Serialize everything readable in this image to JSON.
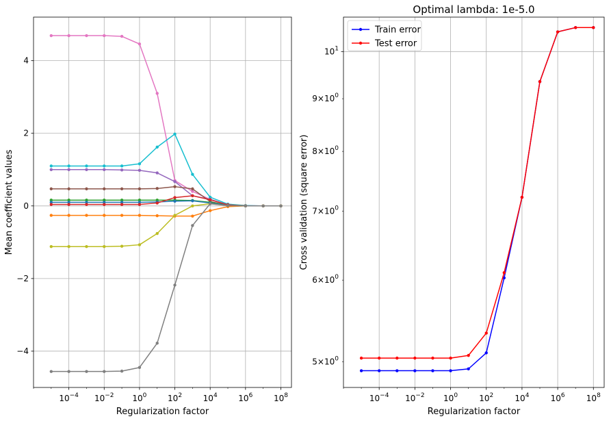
{
  "chart_data": [
    {
      "type": "line",
      "title": "",
      "xlabel": "Regularization factor",
      "ylabel": "Mean coefficient values",
      "xscale": "log",
      "yscale": "linear",
      "xlim": [
        1e-06,
        400000000.0
      ],
      "ylim": [
        -5.0,
        5.2
      ],
      "grid": true,
      "x": [
        1e-05,
        0.0001,
        0.001,
        0.01,
        0.1,
        1.0,
        10.0,
        100.0,
        1000.0,
        10000.0,
        100000.0,
        1000000.0,
        10000000.0,
        100000000.0
      ],
      "xticks": [
        {
          "value": 0.0001,
          "base": "10",
          "exp": "−4"
        },
        {
          "value": 0.01,
          "base": "10",
          "exp": "−2"
        },
        {
          "value": 1.0,
          "base": "10",
          "exp": "0"
        },
        {
          "value": 100.0,
          "base": "10",
          "exp": "2"
        },
        {
          "value": 10000.0,
          "base": "10",
          "exp": "4"
        },
        {
          "value": 1000000.0,
          "base": "10",
          "exp": "6"
        },
        {
          "value": 100000000.0,
          "base": "10",
          "exp": "8"
        }
      ],
      "yticks": [
        {
          "value": -4,
          "label": "−4"
        },
        {
          "value": -2,
          "label": "−2"
        },
        {
          "value": 0,
          "label": "0"
        },
        {
          "value": 2,
          "label": "2"
        },
        {
          "value": 4,
          "label": "4"
        }
      ],
      "series": [
        {
          "color": "#e377c2",
          "values": [
            4.69,
            4.69,
            4.69,
            4.69,
            4.67,
            4.46,
            3.1,
            0.7,
            0.4,
            0.18,
            0.03,
            0.01,
            0.0,
            0.0
          ]
        },
        {
          "color": "#17becf",
          "values": [
            1.1,
            1.1,
            1.1,
            1.1,
            1.1,
            1.16,
            1.62,
            1.98,
            0.87,
            0.24,
            0.05,
            0.01,
            0.0,
            0.0
          ]
        },
        {
          "color": "#9467bd",
          "values": [
            1.0,
            1.0,
            1.0,
            1.0,
            0.99,
            0.98,
            0.91,
            0.67,
            0.28,
            0.18,
            0.03,
            0.0,
            0.0,
            0.0
          ]
        },
        {
          "color": "#8c564b",
          "values": [
            0.47,
            0.47,
            0.47,
            0.47,
            0.47,
            0.47,
            0.48,
            0.53,
            0.47,
            0.12,
            0.02,
            0.0,
            0.0,
            0.0
          ]
        },
        {
          "color": "#2ca02c",
          "values": [
            0.16,
            0.16,
            0.16,
            0.16,
            0.16,
            0.16,
            0.16,
            0.16,
            0.15,
            0.1,
            0.02,
            0.0,
            0.0,
            0.0
          ]
        },
        {
          "color": "#1f77b4",
          "values": [
            0.1,
            0.1,
            0.1,
            0.1,
            0.1,
            0.1,
            0.11,
            0.13,
            0.14,
            0.08,
            0.02,
            0.0,
            0.0,
            0.0
          ]
        },
        {
          "color": "#d62728",
          "values": [
            0.04,
            0.04,
            0.04,
            0.04,
            0.04,
            0.04,
            0.08,
            0.23,
            0.28,
            0.17,
            0.03,
            0.0,
            0.0,
            0.0
          ]
        },
        {
          "color": "#ff7f0e",
          "values": [
            -0.26,
            -0.26,
            -0.26,
            -0.26,
            -0.26,
            -0.26,
            -0.27,
            -0.28,
            -0.28,
            -0.13,
            -0.02,
            0.0,
            0.0,
            0.0
          ]
        },
        {
          "color": "#bcbd22",
          "values": [
            -1.12,
            -1.12,
            -1.12,
            -1.12,
            -1.11,
            -1.07,
            -0.76,
            -0.26,
            0.0,
            0.06,
            0.01,
            0.0,
            0.0,
            0.0
          ]
        },
        {
          "color": "#7f7f7f",
          "values": [
            -4.56,
            -4.56,
            -4.56,
            -4.56,
            -4.55,
            -4.45,
            -3.78,
            -2.18,
            -0.54,
            0.06,
            0.01,
            0.0,
            0.0,
            0.0
          ]
        }
      ]
    },
    {
      "type": "line",
      "title": "Optimal lambda: 1e-5.0",
      "xlabel": "Regularization factor",
      "ylabel": "Cross validation (square error)",
      "xscale": "log",
      "yscale": "log",
      "xlim": [
        1e-06,
        400000000.0
      ],
      "ylim": [
        4.72,
        10.8
      ],
      "grid": true,
      "legend": "top-left",
      "x": [
        1e-05,
        0.0001,
        0.001,
        0.01,
        0.1,
        1.0,
        10.0,
        100.0,
        1000.0,
        10000.0,
        100000.0,
        1000000.0,
        10000000.0,
        100000000.0
      ],
      "xticks": [
        {
          "value": 0.0001,
          "base": "10",
          "exp": "−4"
        },
        {
          "value": 0.01,
          "base": "10",
          "exp": "−2"
        },
        {
          "value": 1.0,
          "base": "10",
          "exp": "0"
        },
        {
          "value": 100.0,
          "base": "10",
          "exp": "2"
        },
        {
          "value": 10000.0,
          "base": "10",
          "exp": "4"
        },
        {
          "value": 1000000.0,
          "base": "10",
          "exp": "6"
        },
        {
          "value": 100000000.0,
          "base": "10",
          "exp": "8"
        }
      ],
      "yticks": [
        {
          "value": 5,
          "major": false,
          "mant": "5×",
          "base": "10",
          "exp": "0"
        },
        {
          "value": 6,
          "major": false,
          "mant": "6×",
          "base": "10",
          "exp": "0"
        },
        {
          "value": 7,
          "major": false,
          "mant": "7×",
          "base": "10",
          "exp": "0"
        },
        {
          "value": 8,
          "major": false,
          "mant": "8×",
          "base": "10",
          "exp": "0"
        },
        {
          "value": 9,
          "major": false,
          "mant": "9×",
          "base": "10",
          "exp": "0"
        },
        {
          "value": 10,
          "major": true,
          "mant": "",
          "base": "10",
          "exp": "1"
        }
      ],
      "series": [
        {
          "name": "Train error",
          "color": "#0000ff",
          "values": [
            4.9,
            4.9,
            4.9,
            4.9,
            4.9,
            4.9,
            4.92,
            5.1,
            6.03,
            7.22,
            9.35,
            10.45,
            10.55,
            10.55
          ]
        },
        {
          "name": "Test error",
          "color": "#ff0000",
          "values": [
            5.04,
            5.04,
            5.04,
            5.04,
            5.04,
            5.04,
            5.07,
            5.33,
            6.1,
            7.22,
            9.35,
            10.45,
            10.55,
            10.55
          ]
        }
      ]
    }
  ]
}
